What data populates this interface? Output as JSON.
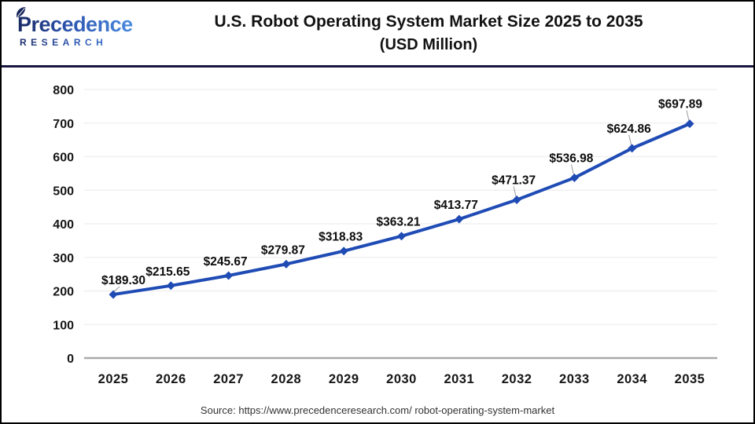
{
  "logo": {
    "name": "Precedence",
    "sub": "RESEARCH"
  },
  "title": {
    "line1": "U.S. Robot Operating System Market Size 2025 to 2035",
    "line2": "(USD Million)"
  },
  "chart_data": {
    "type": "line",
    "title": "U.S. Robot Operating System Market Size 2025 to 2035 (USD Million)",
    "categories": [
      "2025",
      "2026",
      "2027",
      "2028",
      "2029",
      "2030",
      "2031",
      "2032",
      "2033",
      "2034",
      "2035"
    ],
    "values": [
      189.3,
      215.65,
      245.67,
      279.87,
      318.83,
      363.21,
      413.77,
      471.37,
      536.98,
      624.86,
      697.89
    ],
    "point_labels": [
      "$189.30",
      "$215.65",
      "$245.67",
      "$279.87",
      "$318.83",
      "$363.21",
      "$413.77",
      "$471.37",
      "$536.98",
      "$624.86",
      "$697.89"
    ],
    "ylim": [
      0,
      800
    ],
    "ytick_step": 100,
    "xlabel": "",
    "ylabel": "",
    "grid": true,
    "legend": "none",
    "line_color": "#1f4bb5",
    "grid_color": "#f0f0f0",
    "axis_line_color": "#a9a9a9",
    "tick_label_color": "#161616",
    "data_label_color": "#0d0d0d"
  },
  "footer": {
    "source": "Source: https://www.precedenceresearch.com/ robot-operating-system-market"
  },
  "colors": {
    "divider_navy": "#15153f",
    "logo_navy": "#1a2a66",
    "logo_blue": "#4b8be0",
    "frame_border": "#000000"
  }
}
